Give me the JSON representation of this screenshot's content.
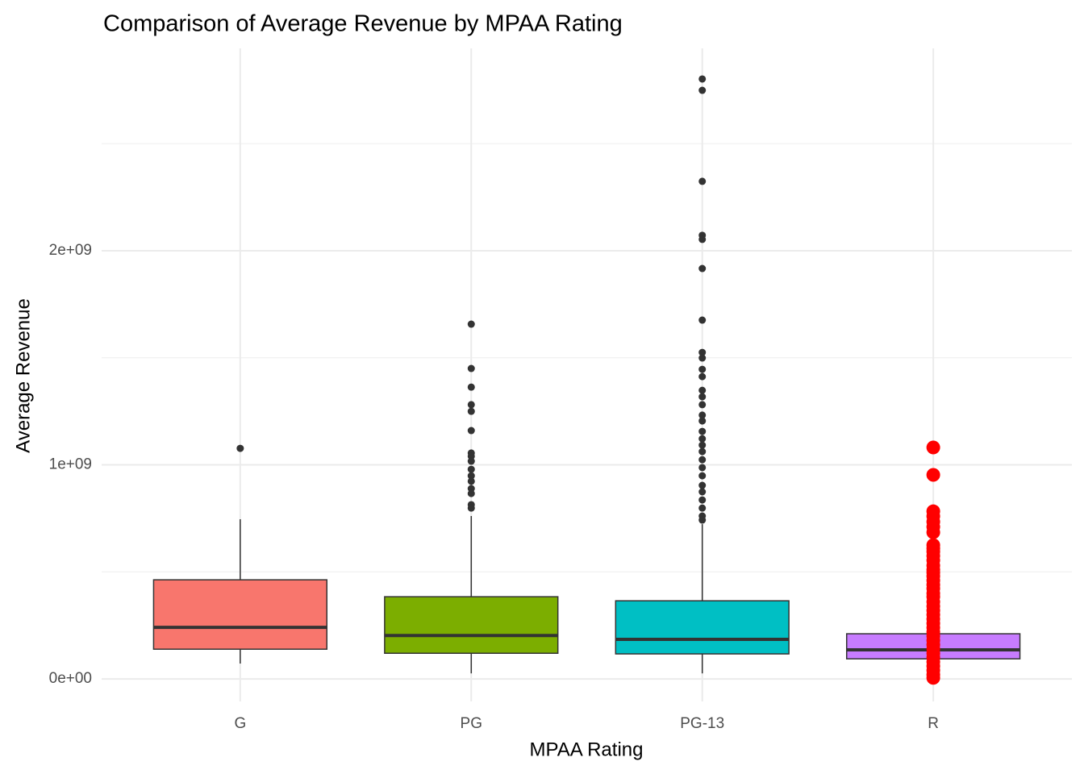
{
  "chart_data": {
    "type": "box",
    "title": "Comparison of Average Revenue by MPAA Rating",
    "x_label": "MPAA Rating",
    "y_label": "Average Revenue",
    "categories": [
      "G",
      "PG",
      "PG-13",
      "R"
    ],
    "ylim": [
      -105000000,
      2945000000
    ],
    "yticks": [
      {
        "value": 0,
        "label": "0e+00"
      },
      {
        "value": 1000000000,
        "label": "1e+09"
      },
      {
        "value": 2000000000,
        "label": "2e+09"
      }
    ],
    "minor_yticks": [
      500000000,
      1500000000,
      2500000000
    ],
    "grid": true,
    "outlier_color": "#333333",
    "boxes": [
      {
        "color": "#F8766D",
        "whisker_low": 72000000,
        "q1": 139000000,
        "median": 241000000,
        "q3": 463000000,
        "whisker_high": 746000000,
        "outliers": [
          1077000000
        ]
      },
      {
        "color": "#7CAE00",
        "whisker_low": 26000000,
        "q1": 120000000,
        "median": 203000000,
        "q3": 384000000,
        "whisker_high": 761000000,
        "outliers": [
          1657000000,
          1450000000,
          1363000000,
          1281000000,
          1250000000,
          1160000000,
          1055000000,
          1040000000,
          1017000000,
          979000000,
          949000000,
          923000000,
          889000000,
          866000000,
          814000000,
          798000000
        ]
      },
      {
        "color": "#00BFC4",
        "whisker_low": 26000000,
        "q1": 117000000,
        "median": 185000000,
        "q3": 365000000,
        "whisker_high": 723000000,
        "outliers": [
          2802000000,
          2749000000,
          2324000000,
          2072000000,
          2053000000,
          1917000000,
          1676000000,
          1525000000,
          1499000000,
          1446000000,
          1412000000,
          1348000000,
          1318000000,
          1281000000,
          1232000000,
          1205000000,
          1156000000,
          1122000000,
          1092000000,
          1062000000,
          1024000000,
          987000000,
          949000000,
          904000000,
          874000000,
          836000000,
          798000000,
          761000000,
          742000000
        ]
      },
      {
        "color": "#C77CFF",
        "whisker_low": 15000000,
        "q1": 94000000,
        "median": 136000000,
        "q3": 211000000,
        "whisker_high": 425000000,
        "outliers": [],
        "points_color": "#FF0000",
        "points": [
          1081000000,
          953000000,
          783000000,
          760000000,
          734000000,
          710000000,
          685000000,
          625000000,
          610000000,
          595000000,
          575000000,
          554000000,
          530000000,
          510000000,
          497000000,
          480000000,
          460000000,
          440000000,
          422000000,
          400000000,
          384000000,
          360000000,
          340000000,
          320000000,
          300000000,
          280000000,
          260000000,
          240000000,
          220000000,
          200000000,
          180000000,
          160000000,
          140000000,
          120000000,
          100000000,
          80000000,
          60000000,
          40000000,
          20000000,
          5000000
        ]
      }
    ]
  }
}
